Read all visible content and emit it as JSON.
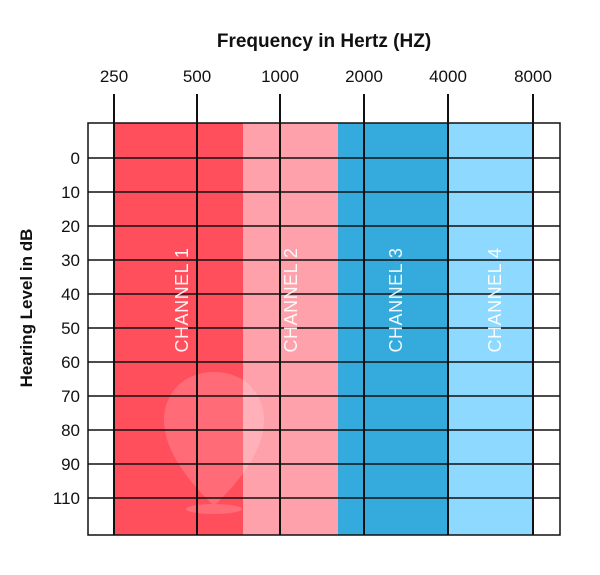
{
  "chart_data": {
    "type": "heatmap",
    "title": "Frequency in Hertz (HZ)",
    "ylabel": "Hearing Level in dB",
    "x_tick_labels": [
      "250",
      "500",
      "1000",
      "2000",
      "4000",
      "8000"
    ],
    "y_tick_labels": [
      "0",
      "10",
      "20",
      "30",
      "40",
      "50",
      "60",
      "70",
      "80",
      "90",
      "110"
    ],
    "channels": [
      {
        "label": "CHANNEL 1",
        "color": "#ff4f5d"
      },
      {
        "label": "CHANNEL 2",
        "color": "#ffa1ab"
      },
      {
        "label": "CHANNEL 3",
        "color": "#35abdd"
      },
      {
        "label": "CHANNEL 4",
        "color": "#8ed9ff"
      }
    ],
    "grid": true
  }
}
